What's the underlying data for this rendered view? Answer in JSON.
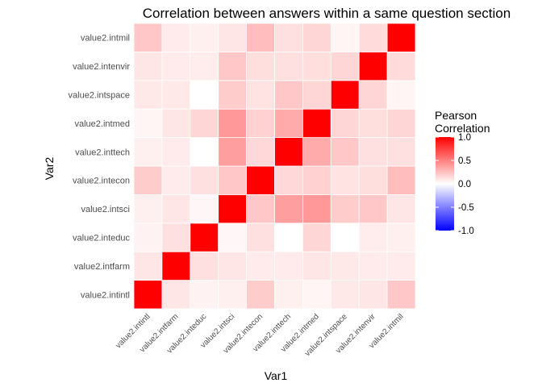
{
  "chart_data": {
    "type": "heatmap",
    "title": "Correlation between answers within a same question section",
    "xlabel": "Var1",
    "ylabel": "Var2",
    "variables": [
      "value2.intintl",
      "value2.intfarm",
      "value2.inteduc",
      "value2.intsci",
      "value2.intecon",
      "value2.inttech",
      "value2.intmed",
      "value2.intspace",
      "value2.intenvir",
      "value2.intmil"
    ],
    "matrix": [
      [
        1.0,
        0.1,
        0.05,
        0.06,
        0.2,
        0.06,
        0.04,
        0.09,
        0.1,
        0.22
      ],
      [
        0.1,
        1.0,
        0.12,
        0.1,
        0.08,
        0.08,
        0.1,
        0.09,
        0.08,
        0.08
      ],
      [
        0.05,
        0.12,
        1.0,
        0.03,
        0.12,
        0.0,
        0.16,
        0.0,
        0.07,
        0.06
      ],
      [
        0.06,
        0.1,
        0.03,
        1.0,
        0.22,
        0.38,
        0.4,
        0.2,
        0.22,
        0.1
      ],
      [
        0.2,
        0.08,
        0.12,
        0.22,
        1.0,
        0.15,
        0.18,
        0.11,
        0.13,
        0.26
      ],
      [
        0.06,
        0.08,
        0.0,
        0.38,
        0.15,
        1.0,
        0.33,
        0.22,
        0.12,
        0.12
      ],
      [
        0.04,
        0.1,
        0.16,
        0.4,
        0.18,
        0.33,
        1.0,
        0.16,
        0.13,
        0.16
      ],
      [
        0.09,
        0.09,
        0.0,
        0.2,
        0.11,
        0.22,
        0.16,
        1.0,
        0.16,
        0.04
      ],
      [
        0.1,
        0.08,
        0.07,
        0.22,
        0.13,
        0.12,
        0.13,
        0.16,
        1.0,
        0.14
      ],
      [
        0.22,
        0.08,
        0.06,
        0.1,
        0.26,
        0.12,
        0.16,
        0.04,
        0.14,
        1.0
      ]
    ],
    "color_scale": {
      "limits": [
        -1,
        1
      ],
      "low": "#0000ff",
      "mid": "#ffffff",
      "high": "#ff0000"
    },
    "legend": {
      "title_line1": "Pearson",
      "title_line2": "Correlation",
      "breaks": [
        "1.0",
        "0.5",
        "0.0",
        "-0.5",
        "-1.0"
      ],
      "break_values": [
        1.0,
        0.5,
        0.0,
        -0.5,
        -1.0
      ],
      "placement": "right"
    },
    "grid": false
  }
}
